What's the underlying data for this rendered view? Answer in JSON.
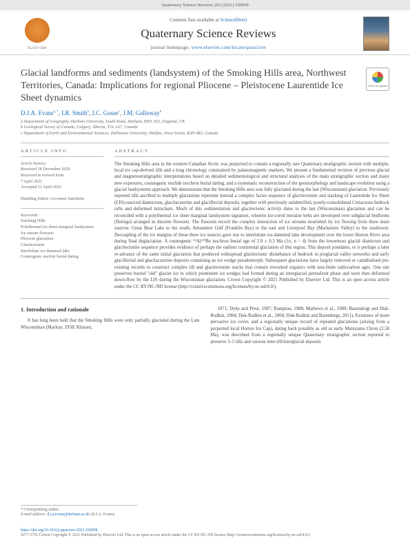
{
  "header_ref": "Quaternary Science Reviews 262 (2021) 106958",
  "contents_line_prefix": "Contents lists available at ",
  "sciencedirect": "ScienceDirect",
  "journal_title": "Quaternary Science Reviews",
  "journal_homepage_prefix": "journal homepage: ",
  "journal_homepage_url": "www.elsevier.com/locate/quascirev",
  "elsevier_label": "ELSEVIER",
  "check_updates_label": "Check for updates",
  "article_title": "Glacial landforms and sediments (landsystem) of the Smoking Hills area, Northwest Territories, Canada: Implications for regional Pliocene – Pleistocene Laurentide Ice Sheet dynamics",
  "authors": [
    {
      "name": "D.J.A. Evans",
      "aff": "a, *"
    },
    {
      "name": "I.R. Smith",
      "aff": "b"
    },
    {
      "name": "J.C. Gosse",
      "aff": "c"
    },
    {
      "name": "J.M. Galloway",
      "aff": "b"
    }
  ],
  "authors_sep": ", ",
  "affiliations": [
    "a Department of Geography, Durham University, South Road, Durham, DH1 3LE, England, UK",
    "b Geological Survey of Canada, Calgary, Alberta, T2L 2A7, Canada",
    "c Department of Earth and Environmental Sciences, Dalhousie University, Halifax, Nova Scotia, B3H 4R2, Canada"
  ],
  "info_head": "ARTICLE INFO",
  "abstract_head": "ABSTRACT",
  "history_label": "Article history:",
  "history_lines": [
    "Received 18 December 2020",
    "Received in revised form",
    "7 April 2021",
    "Accepted 11 April 2021"
  ],
  "editor_label": "Handling Editor: Giovanni Zanchetta",
  "keywords_label": "Keywords:",
  "keywords": [
    "Smoking Hills",
    "Polythermal ice sheet marginal landsystem",
    "Ice stream flowsets",
    "Pliocene glaciation",
    "Glacitectonite",
    "Interlobate ice-dammed lake",
    "Cosmogenic nuclide burial dating"
  ],
  "abstract_text": "The Smoking Hills area in the western Canadian Arctic was purported to contain a regionally rare Quaternary stratigraphic section with multiple, local ice cap-derived tills and a long chronology constrained by palaeomagnetic markers. We present a fundamental revision of previous glacial and magnetostratigraphic interpretations based on detailed sedimentological and structural analyses of the main stratigraphic section and many new exposures, cosmogenic nuclide isochron burial dating, and a systematic reconstruction of the geomorphology and landscape evolution using a glacial landsystems approach. We demonstrate that the Smoking Hills area was fully glaciated during the last (Wisconsinan) glaciation. Previously reported tills ascribed to multiple glaciations represent instead a complex facies sequence of glacitectonite and stacking of Laurentide Ice Sheet (LIS)-sourced diamictons, glacilacustrine and glacifluvial deposits, together with previously unidentified, poorly-consolidated Cretaceous bedrock rafts and deformed intraclasts. Much of this sedimentation and glacitectonic activity dates to the last (Wisconsinan) glaciation and can be reconciled with a polythermal ice sheet marginal landsystem signature, wherein ice-cored moraine belts are developed over subglacial bedforms (flutings) arranged in discrete flowsets. The flowsets record the complex interaction of ice streams nourished by ice flowing from three main sources: Great Bear Lake to the south, Amundsen Gulf (Franklin Bay) to the east and Liverpool Bay (Mackenzie Valley) to the southwest. Decoupling of the ice margins of these three ice sources gave rise to interlobate ice-dammed lake development over the lower Horton River area during final deglaciation. A cosmogenic ²⁶Al/¹⁰Be isochron burial age of 2.9 ± 0.3 Ma (1σ, n = 4) from the lowermost glacial diamicton and glacitectonite sequence provides evidence of perhaps the earliest continental glaciation of this region. This deposit postdates, or is perhaps a later re-advance of the same initial glaciation that produced widespread glacitectonic disturbance of bedrock in preglacial valley networks and early glacifluvial and glacilacustrine deposits containing an ice wedge pseudomorph. Subsequent glaciations have largely removed or cannibalised pre-existing records to construct complex till and glacitectonite stacks that contain reworked organics with non-finite radiocarbon ages. One site preserves buried \"old\" glacier ice in which prominent ice wedges had formed during an interglacial permafrost phase and were then deformed down-flow by the LIS during the Wisconsinan glaciation. Crown Copyright © 2021 Published by Elsevier Ltd. This is an open access article under the CC BY-NC-ND license (http://creativecommons.org/licenses/by-nc-nd/4.0/).",
  "section_1_head": "1. Introduction and rationale",
  "body_col1": "It has long been held that the Smoking Hills were only partially glaciated during the Late Wisconsinan (Mackay, 1958; Klassen,",
  "body_col2": "1971; Dyke and Prest, 1987; Rampton, 1988; Mathews et al., 1989; Barendregt and Duk-Rodkin, 2004; Duk-Rodkin et al., 2004; Duk-Rodkin and Barendregt, 2011). Existence of more pervasive ice cover, and a regionally unique record of repeated glaciations (arising from a purported local Horton Ice Cap), dating back possibly as old as early Matuyama Chron (2.58 Ma), was described from a regionally unique Quaternary stratigraphic section reported to preserve 3–5 tills and various inter-till/interglacial deposits",
  "corr_author_label": "* Corresponding author.",
  "email_label": "E-mail address: ",
  "email_value": "d.j.a.evans@durham.ac.uk",
  "email_name": " (D.J.A. Evans).",
  "doi_line": "https://doi.org/10.1016/j.quascirev.2021.106958",
  "copyright_line": "0277-3791/Crown Copyright © 2021 Published by Elsevier Ltd. This is an open access article under the CC BY-NC-ND license (http://creativecommons.org/licenses/by-nc-nd/4.0/)."
}
